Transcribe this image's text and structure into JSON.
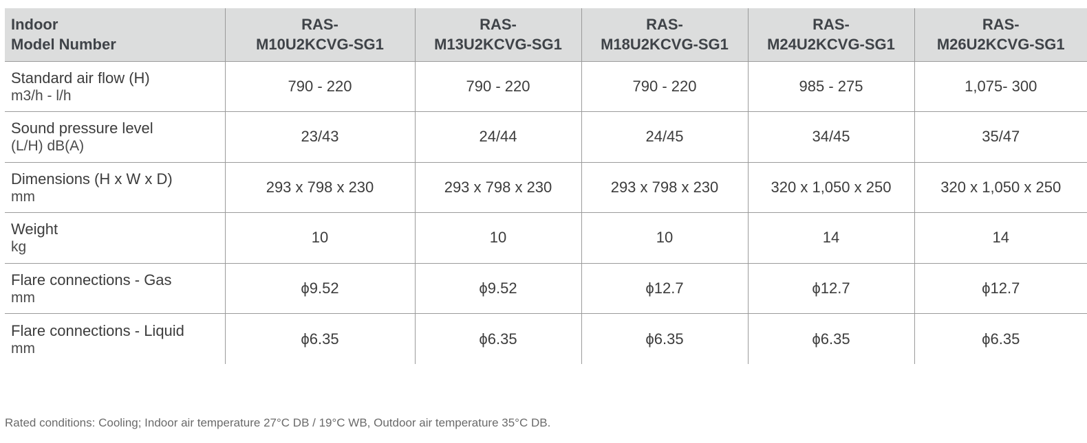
{
  "table": {
    "header": {
      "label_line1": "Indoor",
      "label_line2": "Model Number",
      "models": [
        {
          "line1": "RAS-",
          "line2": "M10U2KCVG-SG1"
        },
        {
          "line1": "RAS-",
          "line2": "M13U2KCVG-SG1"
        },
        {
          "line1": "RAS-",
          "line2": "M18U2KCVG-SG1"
        },
        {
          "line1": "RAS-",
          "line2": "M24U2KCVG-SG1"
        },
        {
          "line1": "RAS-",
          "line2": "M26U2KCVG-SG1"
        }
      ]
    },
    "rows": [
      {
        "label": "Standard air flow (H)",
        "unit": "m3/h - l/h",
        "values": [
          "790 - 220",
          "790 - 220",
          "790 - 220",
          "985 - 275",
          "1,075- 300"
        ]
      },
      {
        "label": "Sound pressure level",
        "unit": "(L/H) dB(A)",
        "values": [
          "23/43",
          "24/44",
          "24/45",
          "34/45",
          "35/47"
        ]
      },
      {
        "label": "Dimensions (H x W x D)",
        "unit": "mm",
        "values": [
          "293 x 798 x 230",
          "293 x 798 x 230",
          "293 x 798 x 230",
          "320 x 1,050 x 250",
          "320 x 1,050 x 250"
        ]
      },
      {
        "label": "Weight",
        "unit": "kg",
        "values": [
          "10",
          "10",
          "10",
          "14",
          "14"
        ]
      },
      {
        "label": "Flare connections - Gas",
        "unit": "mm",
        "values": [
          "ϕ9.52",
          "ϕ9.52",
          "ϕ12.7",
          "ϕ12.7",
          "ϕ12.7"
        ]
      },
      {
        "label": "Flare connections - Liquid",
        "unit": "mm",
        "values": [
          "ϕ6.35",
          "ϕ6.35",
          "ϕ6.35",
          "ϕ6.35",
          "ϕ6.35"
        ]
      }
    ]
  },
  "footnote": "Rated conditions: Cooling; Indoor air temperature 27°C DB / 19°C WB, Outdoor air temperature 35°C DB."
}
